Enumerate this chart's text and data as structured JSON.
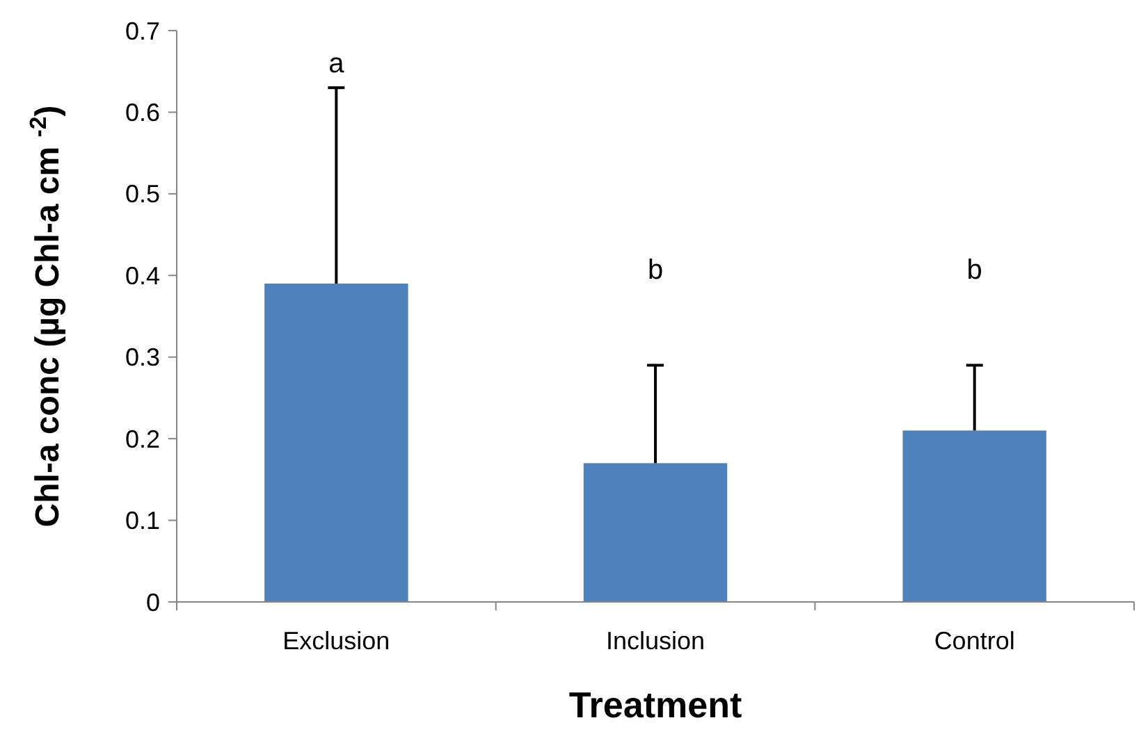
{
  "chart_data": {
    "type": "bar",
    "xlabel": "Treatment",
    "ylabel": "Chl-a conc (µg Chl-a cm $^{-2}$)",
    "categories": [
      "Exclusion",
      "Inclusion",
      "Control"
    ],
    "values": [
      0.39,
      0.17,
      0.21
    ],
    "errors": [
      [
        0.39,
        0.63
      ],
      [
        0.17,
        0.29
      ],
      [
        0.21,
        0.29
      ]
    ],
    "color": "#4f81bd",
    "ylim": [
      0,
      0.7
    ],
    "yticks": [
      0,
      0.1,
      0.2,
      0.3,
      0.4,
      0.5,
      0.6,
      0.7
    ],
    "grid": false,
    "annotations": [
      "a",
      "b",
      "b"
    ]
  }
}
